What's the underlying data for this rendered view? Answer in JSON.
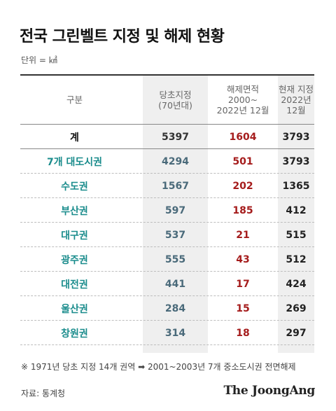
{
  "title": "전국 그린벨트 지정 및 해제 현황",
  "unit": "단위 = ㎢",
  "headers": {
    "label": "구분",
    "a": "당초지정\n(70년대)",
    "b": "해제면적\n2000~\n2022년 12월",
    "c": "현재 지정\n2022년\n12월"
  },
  "rows": [
    {
      "label": "계",
      "a": "5397",
      "b": "1604",
      "c": "3793"
    },
    {
      "label": "7개 대도시권",
      "a": "4294",
      "b": "501",
      "c": "3793"
    },
    {
      "label": "수도권",
      "a": "1567",
      "b": "202",
      "c": "1365"
    },
    {
      "label": "부산권",
      "a": "597",
      "b": "185",
      "c": "412"
    },
    {
      "label": "대구권",
      "a": "537",
      "b": "21",
      "c": "515"
    },
    {
      "label": "광주권",
      "a": "555",
      "b": "43",
      "c": "512"
    },
    {
      "label": "대전권",
      "a": "441",
      "b": "17",
      "c": "424"
    },
    {
      "label": "울산권",
      "a": "284",
      "b": "15",
      "c": "269"
    },
    {
      "label": "창원권",
      "a": "314",
      "b": "18",
      "c": "297"
    }
  ],
  "note": "※ 1971년 당초 지정 14개 권역 ➡ 2001~2003년 7개 중소도시권 전면해제",
  "source": "자료: 통계청",
  "brand": "The JoongAng",
  "colors": {
    "region_label": "#1a8c8c",
    "released_value": "#a51c1c",
    "original_value": "#4a6a7a",
    "shade": "#efefef"
  }
}
